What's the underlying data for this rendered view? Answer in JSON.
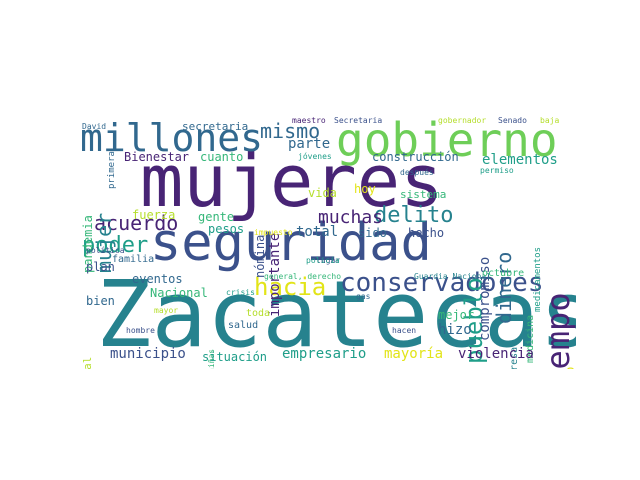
{
  "colors": {
    "dark_purple": "#482475",
    "indigo": "#3b518b",
    "blue": "#31688e",
    "teal": "#26828e",
    "green_teal": "#1f9e89",
    "green": "#35b779",
    "lime": "#6ece58",
    "light_green": "#b5de2b",
    "yellow": "#e2e418"
  },
  "words": {
    "zacatecas": "Zacatecas",
    "mujeres": "mujeres",
    "seguridad": "seguridad",
    "gobierno": "gobierno",
    "millones": "millones",
    "tiempo": "tiempo",
    "conservadores": "conservadores",
    "hacia": "hacia",
    "mismo": "mismo",
    "acuerdo": "acuerdo",
    "delito": "delito",
    "poder": "poder",
    "muchas": "muchas",
    "mujer": "mujer",
    "pueblo": "pueblo",
    "dinero": "dinero",
    "elementos": "elementos",
    "compromiso": "compromiso",
    "construccion": "construcción",
    "bienestar": "Bienestar",
    "cuanto": "cuanto",
    "parte": "parte",
    "importante": "importante",
    "secretaria": "secretaria",
    "secretaria_cap": "Secretaría",
    "maestro": "maestro",
    "gobernador": "gobernador",
    "senado": "Senado",
    "baja": "baja",
    "david": "David",
    "primera": "primera",
    "jovenes": "jóvenes",
    "permiso": "permiso",
    "despues": "después",
    "hoy": "hoy",
    "sistema": "sistema",
    "vida": "vida",
    "pandemia": "pandemia",
    "fuerza": "fuerza",
    "gente": "gente",
    "nomina": "nómina",
    "pesos": "pesos",
    "impuesto": "impuesto",
    "total": "total",
    "sido": "sido",
    "hecho": "hecho",
    "medicina": "medicina",
    "medicamentos": "medicamentos",
    "conservadurismo": "conservadurismo",
    "familia": "familia",
    "plan": "plan",
    "eventos": "eventos",
    "nacional": "Nacional",
    "general_derecho": "general, derecho",
    "guardia_nacional": "Guardia Nacional",
    "octubre": "octubre",
    "lugar": "lugar",
    "politica": "política",
    "policia": "policía",
    "bien": "bien",
    "crisis": "crisis",
    "gas": "gas",
    "empresa": "empresa",
    "mejor": "mejor",
    "federal": "federal",
    "mayor": "mayor",
    "toda": "toda",
    "hizo": "hizo",
    "salud": "salud",
    "hombre": "hombre",
    "ninas": "niñas",
    "hacen": "hacen",
    "municipio": "municipio",
    "situacion": "situación",
    "empresario": "empresario",
    "mayoria": "mayoría",
    "violencia": "violencia"
  }
}
